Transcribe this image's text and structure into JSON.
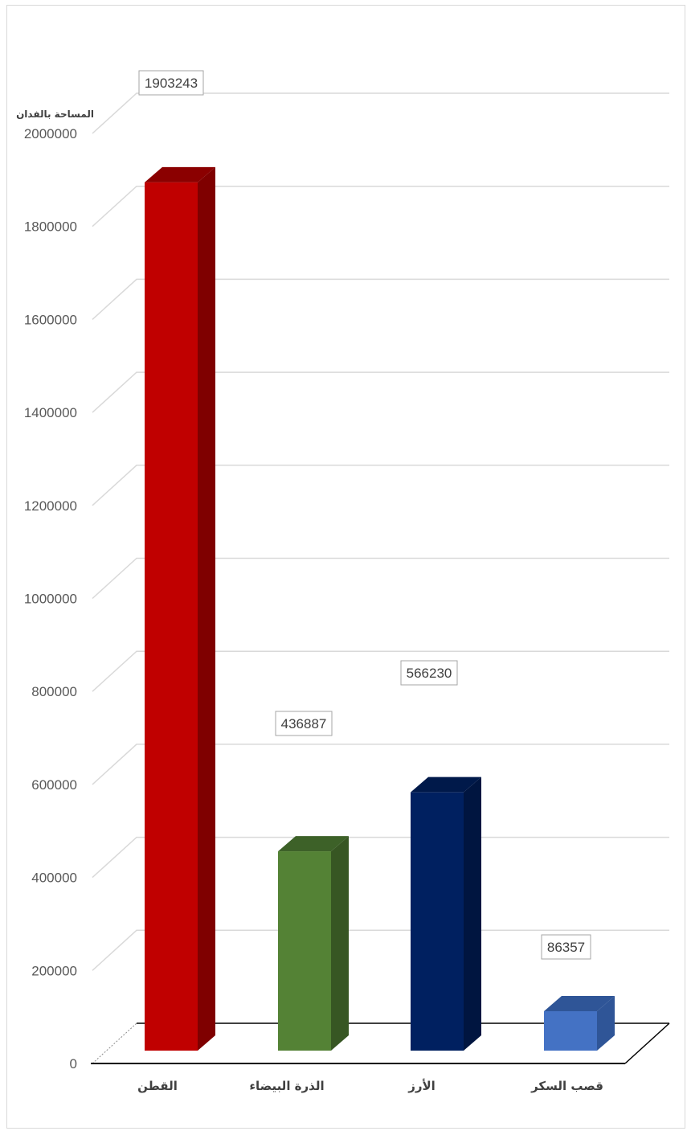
{
  "chart_data": {
    "type": "bar",
    "style": "3d-column",
    "title": "",
    "xlabel": "",
    "ylabel": "المساحة بالفدان",
    "ylim": [
      0,
      2000000
    ],
    "y_tick_step": 200000,
    "y_ticks": [
      "0",
      "200000",
      "400000",
      "600000",
      "800000",
      "1000000",
      "1200000",
      "1400000",
      "1600000",
      "1800000",
      "2000000"
    ],
    "grid": true,
    "legend": "none",
    "categories": [
      "القطن",
      "الذرة البيضاء",
      "الأرز",
      "قصب السكر"
    ],
    "values": [
      1903243,
      436887,
      566230,
      86357
    ],
    "data_labels": [
      "1903243",
      "436887",
      "566230",
      "86357"
    ],
    "colors": {
      "front": [
        "#c00000",
        "#548235",
        "#002060",
        "#4472c4"
      ],
      "side": [
        "#7f0000",
        "#375623",
        "#001540",
        "#2f5597"
      ],
      "top": [
        "#8b0000",
        "#3d6128",
        "#00194a",
        "#2f5597"
      ],
      "grid": "#d9d9d9",
      "axis": "#000000"
    }
  }
}
